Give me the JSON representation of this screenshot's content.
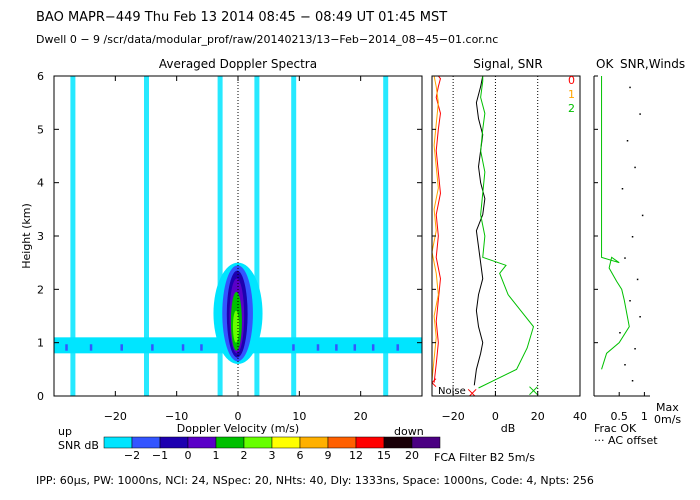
{
  "header": {
    "line1": "BAO   MAPR−449   Thu Feb 13 2014 08:45 − 08:49 UT 01:45 MST",
    "line2": "Dwell   0 −  9   /scr/data/modular_prof/raw/20140213/13−Feb−2014_08−45−01.cor.nc"
  },
  "footer": {
    "params": "IPP:  60μs,   PW: 1000ns,   NCI:  24,   NSpec: 20,  NHts: 40,   Dly: 1333ns,   Space: 1000ns,   Code: 4,   Npts: 256"
  },
  "chart_data": [
    {
      "type": "heatmap",
      "title": "Averaged Doppler Spectra",
      "xlabel": "Doppler Velocity (m/s)",
      "ylabel": "Height (km)",
      "xlim": [
        -30,
        30
      ],
      "ylim": [
        0,
        6
      ],
      "x_ticks": [
        -20,
        -10,
        0,
        10,
        20
      ],
      "y_ticks": [
        0,
        1,
        2,
        3,
        4,
        5,
        6
      ],
      "colorbar": {
        "label": "SNR dB",
        "left_label": "up",
        "right_label": "down",
        "ticks": [
          "−2",
          "−1",
          "0",
          "1",
          "2",
          "3",
          "6",
          "9",
          "12",
          "15",
          "20"
        ],
        "colors": [
          "#00e5ff",
          "#3355ff",
          "#1d00b0",
          "#5a00c8",
          "#00c000",
          "#66ff00",
          "#ffff00",
          "#ffb000",
          "#ff6000",
          "#ff0000",
          "#1a0008",
          "#4b0082"
        ]
      },
      "features": {
        "ground_clutter_band_km": [
          0.8,
          1.1
        ],
        "noise_stripes_mps": [
          -27,
          -15,
          -3,
          3,
          9,
          24
        ],
        "echo_core": {
          "velocity_mps": [
            -4,
            4
          ],
          "height_km": [
            0.6,
            2.5
          ],
          "peak_height_km": 1.25
        }
      }
    },
    {
      "type": "line",
      "title": "Signal, SNR",
      "xlabel": "dB",
      "xlim": [
        -30,
        40
      ],
      "ylim": [
        0,
        6
      ],
      "x_ticks": [
        -20,
        0,
        20,
        40
      ],
      "noise_label": "Noise",
      "series": [
        {
          "name": "Signal",
          "color": "#000000",
          "x": [
            -10,
            -9,
            -7,
            -6,
            -8,
            -9,
            -8,
            -6,
            -7,
            -8,
            -9,
            -6,
            -5,
            -7,
            -8,
            -7,
            -6,
            -8,
            -9,
            -7,
            -6
          ],
          "y": [
            0.2,
            0.5,
            0.8,
            1.0,
            1.3,
            1.6,
            1.9,
            2.2,
            2.5,
            2.8,
            3.1,
            3.4,
            3.7,
            4.0,
            4.3,
            4.6,
            4.9,
            5.2,
            5.5,
            5.8,
            6.0
          ]
        },
        {
          "name": "SNR",
          "color": "#00c000",
          "x": [
            -8,
            10,
            15,
            18,
            12,
            6,
            2,
            5,
            -6,
            -5,
            -7,
            -6,
            -5,
            -7,
            -6,
            -5,
            -7,
            -6,
            -6
          ],
          "y": [
            0.15,
            0.5,
            0.9,
            1.3,
            1.6,
            1.9,
            2.3,
            2.45,
            2.6,
            3.0,
            3.4,
            3.8,
            4.2,
            4.6,
            5.0,
            5.3,
            5.6,
            5.9,
            6.0
          ]
        },
        {
          "name": "0",
          "color": "#ff0000",
          "x": [
            -29,
            -28,
            -27,
            -28,
            -27,
            -26,
            -28,
            -27,
            -28,
            -26,
            -27,
            -28,
            -27,
            -26,
            -28,
            -27,
            -26,
            -27
          ],
          "y": [
            0.25,
            0.6,
            1.0,
            1.4,
            1.8,
            2.2,
            2.6,
            3.0,
            3.4,
            3.8,
            4.2,
            4.6,
            5.0,
            5.3,
            5.6,
            5.8,
            5.95,
            6.0
          ]
        },
        {
          "name": "1",
          "color": "#ffa500",
          "x": [
            -30,
            -29,
            -28,
            -29,
            -27,
            -28,
            -30,
            -28,
            -29,
            -27,
            -28,
            -29,
            -28,
            -27,
            -28,
            -29
          ],
          "y": [
            0.3,
            0.7,
            1.1,
            1.5,
            1.9,
            2.3,
            2.7,
            3.1,
            3.5,
            3.9,
            4.3,
            4.7,
            5.1,
            5.5,
            5.8,
            6.0
          ]
        }
      ],
      "markers": [
        {
          "x": -30,
          "y": 0.25,
          "color": "#ff0000"
        },
        {
          "x": -11,
          "y": 0.05,
          "color": "#ff0000"
        },
        {
          "x": 18,
          "y": 0.1,
          "color": "#00c000"
        }
      ]
    },
    {
      "type": "scatter",
      "title": "SNR,Winds",
      "title_prefix": "OK",
      "legend": [
        {
          "label": "0",
          "color": "#ff0000"
        },
        {
          "label": "1",
          "color": "#ffa500"
        },
        {
          "label": "2",
          "color": "#00c000"
        }
      ],
      "x_ticks": [
        "0.5",
        "1"
      ],
      "x_label": "Frac OK",
      "ac_label": "··· AC offset",
      "max_label": "Max",
      "wind_label": "0m/s",
      "filter_label": "FCA Filter B2   5m/s",
      "frac_ok_line": {
        "frac": [
          0.15,
          0.25,
          0.5,
          0.7,
          0.6,
          0.55,
          0.45,
          0.3,
          0.35,
          0.5,
          0.15,
          0.15,
          0.15
        ],
        "y": [
          0.5,
          0.8,
          1.0,
          1.3,
          1.8,
          2.0,
          2.15,
          2.4,
          2.6,
          2.5,
          2.6,
          3.0,
          6.0
        ]
      },
      "ac_points": {
        "frac": [
          0.75,
          0.6,
          0.8,
          0.5,
          0.9,
          0.7,
          0.85,
          0.6,
          0.75,
          0.95,
          0.55,
          0.8,
          0.65,
          0.9,
          0.7
        ],
        "y": [
          0.3,
          0.6,
          0.9,
          1.2,
          1.5,
          1.8,
          2.2,
          2.6,
          3.0,
          3.4,
          3.9,
          4.3,
          4.8,
          5.3,
          5.8
        ]
      }
    }
  ]
}
